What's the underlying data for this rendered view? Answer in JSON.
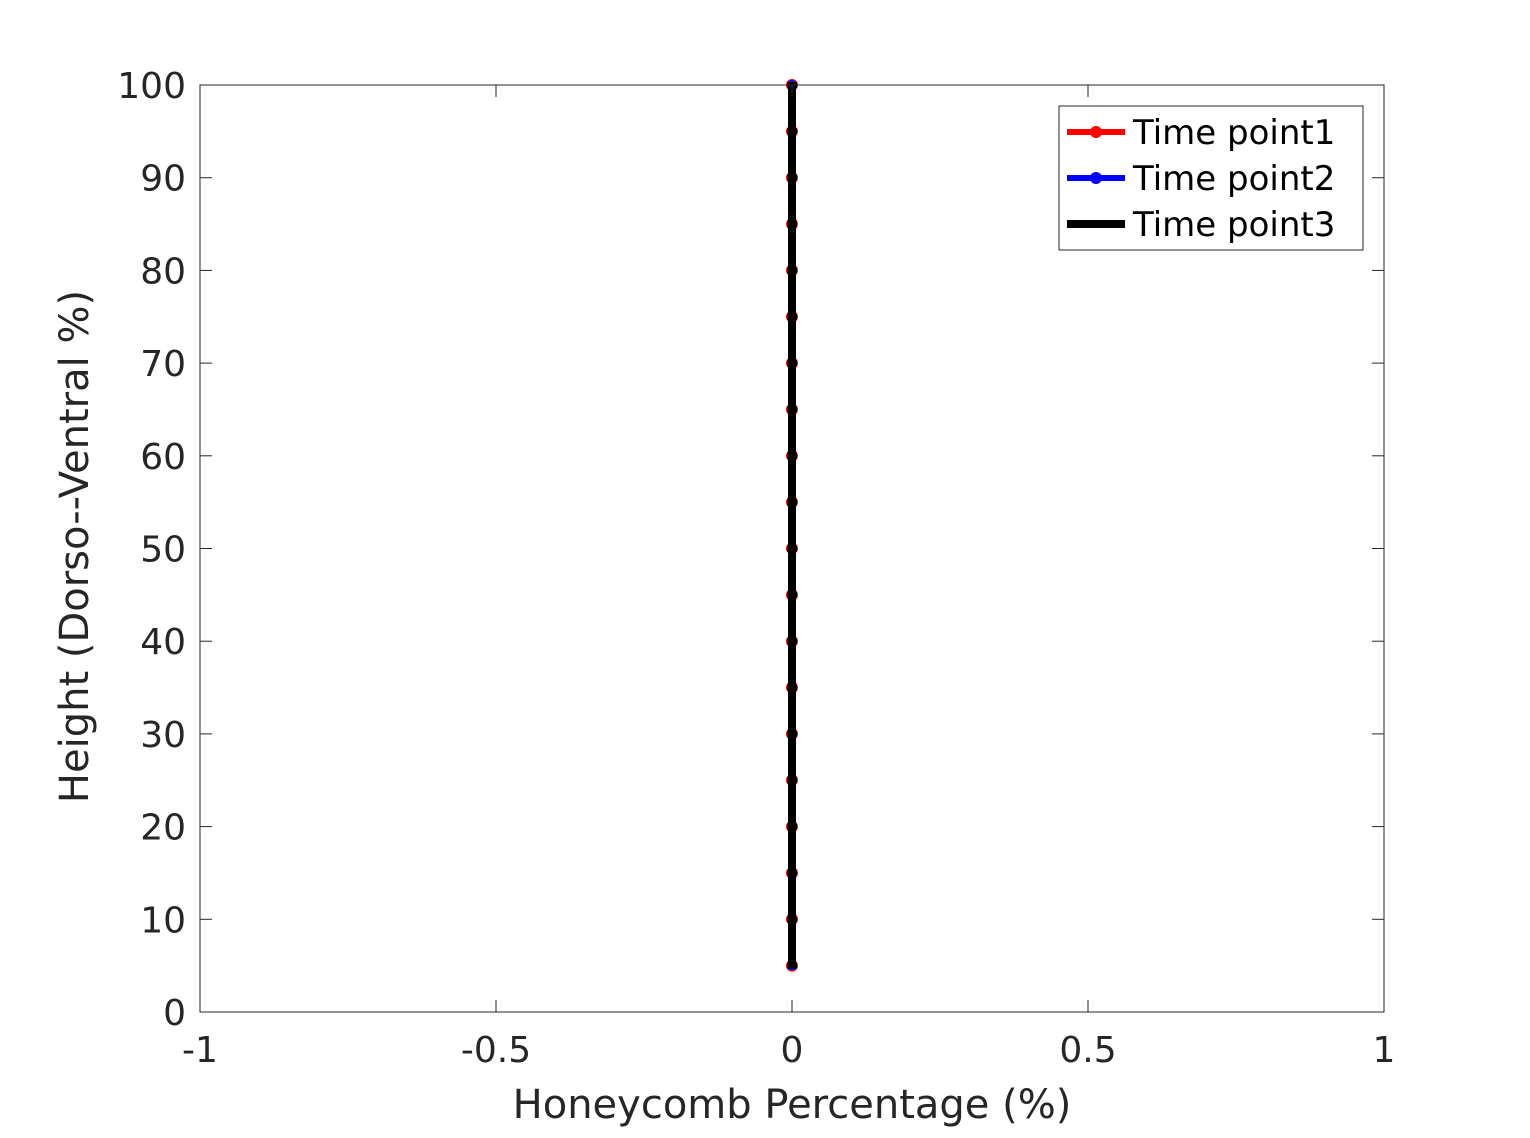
{
  "chart_data": {
    "type": "line",
    "title": "",
    "xlabel": "Honeycomb Percentage (%)",
    "ylabel": "Height (Dorso--Ventral %)",
    "xlim": [
      -1,
      1
    ],
    "ylim": [
      0,
      100
    ],
    "xticks": [
      -1,
      -0.5,
      0,
      0.5,
      1
    ],
    "xtick_labels": [
      "-1",
      "-0.5",
      "0",
      "0.5",
      "1"
    ],
    "yticks": [
      0,
      10,
      20,
      30,
      40,
      50,
      60,
      70,
      80,
      90,
      100
    ],
    "ytick_labels": [
      "0",
      "10",
      "20",
      "30",
      "40",
      "50",
      "60",
      "70",
      "80",
      "90",
      "100"
    ],
    "grid": false,
    "legend_position": "top-right",
    "y": [
      5,
      10,
      15,
      20,
      25,
      30,
      35,
      40,
      45,
      50,
      55,
      60,
      65,
      70,
      75,
      80,
      85,
      90,
      95,
      100
    ],
    "series": [
      {
        "name": "Time point1",
        "color": "#ff0000",
        "x": [
          0,
          0,
          0,
          0,
          0,
          0,
          0,
          0,
          0,
          0,
          0,
          0,
          0,
          0,
          0,
          0,
          0,
          0,
          0,
          0
        ]
      },
      {
        "name": "Time point2",
        "color": "#0000ff",
        "x": [
          0,
          0,
          0,
          0,
          0,
          0,
          0,
          0,
          0,
          0,
          0,
          0,
          0,
          0,
          0,
          0,
          0,
          0,
          0,
          0
        ]
      },
      {
        "name": "Time point3",
        "color": "#000000",
        "x": [
          0,
          0,
          0,
          0,
          0,
          0,
          0,
          0,
          0,
          0,
          0,
          0,
          0,
          0,
          0,
          0,
          0,
          0,
          0,
          0
        ]
      }
    ]
  }
}
